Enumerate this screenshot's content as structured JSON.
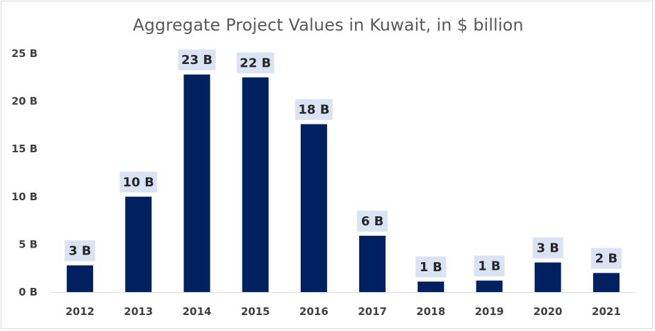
{
  "chart_data": {
    "type": "bar",
    "title": "Aggregate Project Values in Kuwait, in $ billion",
    "xlabel": "",
    "ylabel": "",
    "categories": [
      "2012",
      "2013",
      "2014",
      "2015",
      "2016",
      "2017",
      "2018",
      "2019",
      "2020",
      "2021"
    ],
    "values": [
      2.8,
      10.0,
      22.8,
      22.5,
      17.6,
      5.9,
      1.1,
      1.2,
      3.1,
      2.0
    ],
    "data_labels": [
      "3 B",
      "10 B",
      "23 B",
      "22 B",
      "18 B",
      "6 B",
      "1 B",
      "1 B",
      "3 B",
      "2 B"
    ],
    "ylim": [
      0,
      25
    ],
    "yticks": [
      0,
      5,
      10,
      15,
      20,
      25
    ],
    "ytick_labels": [
      "0 B",
      "5 B",
      "10 B",
      "15 B",
      "20 B",
      "25 B"
    ],
    "grid": false,
    "legend": "none",
    "colors": {
      "bar": "#002060",
      "data_label_background": "#dae3f3",
      "axis": "#d9d9d9",
      "title": "#595959"
    }
  }
}
